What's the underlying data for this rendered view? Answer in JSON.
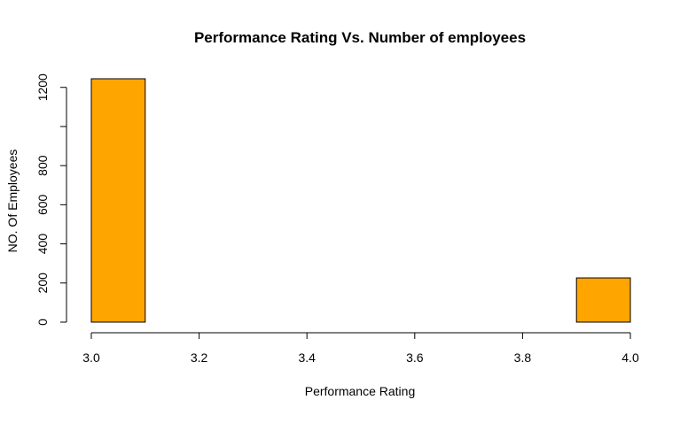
{
  "chart_data": {
    "type": "bar",
    "subtype": "histogram",
    "title": "Performance Rating Vs. Number of employees",
    "xlabel": "Performance Rating",
    "ylabel": "NO. Of Employees",
    "bins": [
      {
        "start": 3.0,
        "end": 3.1,
        "count": 1244
      },
      {
        "start": 3.1,
        "end": 3.2,
        "count": 0
      },
      {
        "start": 3.2,
        "end": 3.3,
        "count": 0
      },
      {
        "start": 3.3,
        "end": 3.4,
        "count": 0
      },
      {
        "start": 3.4,
        "end": 3.5,
        "count": 0
      },
      {
        "start": 3.5,
        "end": 3.6,
        "count": 0
      },
      {
        "start": 3.6,
        "end": 3.7,
        "count": 0
      },
      {
        "start": 3.7,
        "end": 3.8,
        "count": 0
      },
      {
        "start": 3.8,
        "end": 3.9,
        "count": 0
      },
      {
        "start": 3.9,
        "end": 4.0,
        "count": 226
      }
    ],
    "xlim": [
      3.0,
      4.0
    ],
    "ylim": [
      0,
      1244
    ],
    "xticks": [
      3.0,
      3.2,
      3.4,
      3.6,
      3.8,
      4.0
    ],
    "xtick_labels": [
      "3.0",
      "3.2",
      "3.4",
      "3.6",
      "3.8",
      "4.0"
    ],
    "yticks": [
      0,
      200,
      400,
      600,
      800,
      1000,
      1200
    ],
    "ytick_labels": [
      "0",
      "200",
      "400",
      "600",
      "800",
      "",
      "1200"
    ],
    "bar_color": "#FFA500",
    "edge_color": "#000000",
    "grid": false,
    "legend": false
  }
}
